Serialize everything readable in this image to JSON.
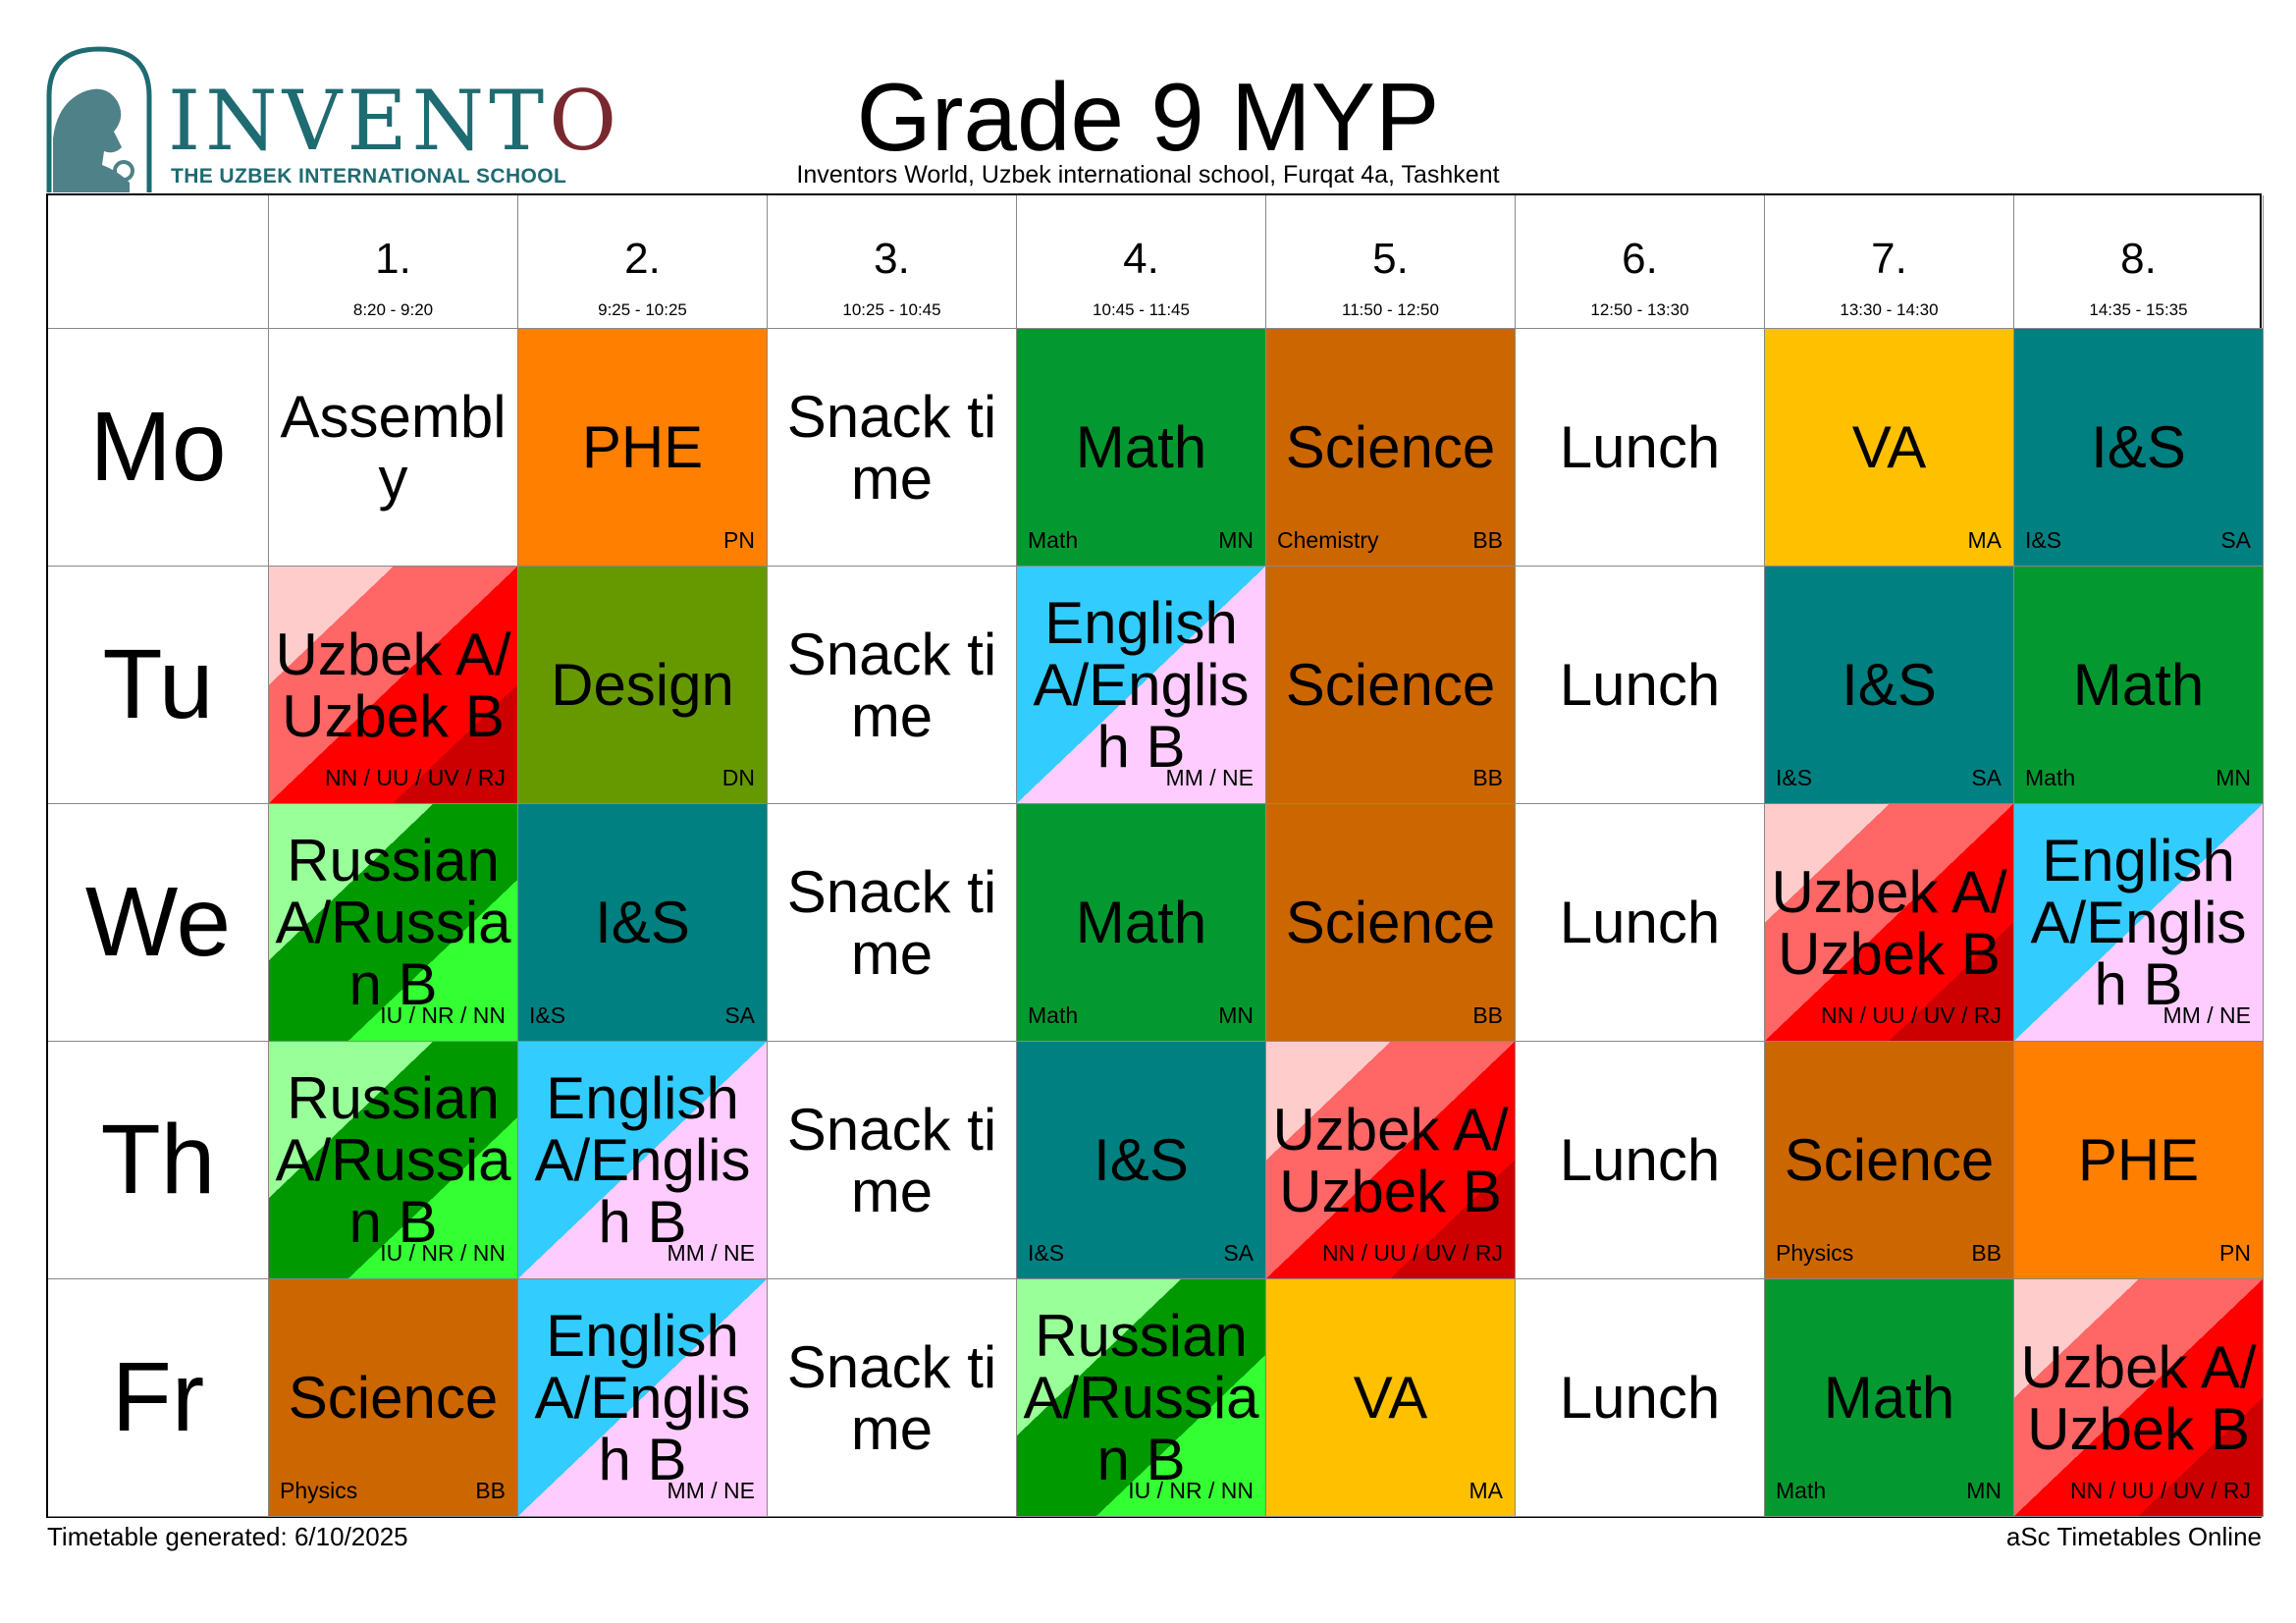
{
  "header": {
    "logo_name": "INVENTO",
    "logo_tagline": "THE UZBEK INTERNATIONAL SCHOOL",
    "title": "Grade 9 MYP",
    "subtitle": "Inventors World, Uzbek international school, Furqat 4a, Tashkent"
  },
  "periods": [
    {
      "num": "1.",
      "time": "8:20 - 9:20"
    },
    {
      "num": "2.",
      "time": "9:25 - 10:25"
    },
    {
      "num": "3.",
      "time": "10:25 - 10:45"
    },
    {
      "num": "4.",
      "time": "10:45 - 11:45"
    },
    {
      "num": "5.",
      "time": "11:50 - 12:50"
    },
    {
      "num": "6.",
      "time": "12:50 - 13:30"
    },
    {
      "num": "7.",
      "time": "13:30 - 14:30"
    },
    {
      "num": "8.",
      "time": "14:35 - 15:35"
    }
  ],
  "colors": {
    "white": "#ffffff",
    "orange": "#ff7f00",
    "green": "#049930",
    "brown": "#cc6600",
    "yellow": "#ffc000",
    "teal": "#008080",
    "olive": "#669900",
    "uzbek": [
      "#ffcccc",
      "#ff6666",
      "#ff0000",
      "#cc0000"
    ],
    "russian": [
      "#99ff99",
      "#009900",
      "#33ff33"
    ],
    "english": [
      "#33ccff",
      "#ffccff"
    ]
  },
  "days": [
    {
      "name": "Mo",
      "lessons": [
        {
          "subject": "Assembly",
          "color": "white",
          "left": "",
          "right": ""
        },
        {
          "subject": "PHE",
          "color": "orange",
          "left": "",
          "right": "PN"
        },
        {
          "subject": "Snack time",
          "color": "white",
          "left": "",
          "right": ""
        },
        {
          "subject": "Math",
          "color": "green",
          "left": "Math",
          "right": "MN"
        },
        {
          "subject": "Science",
          "color": "brown",
          "left": "Chemistry",
          "right": "BB"
        },
        {
          "subject": "Lunch",
          "color": "white",
          "left": "",
          "right": ""
        },
        {
          "subject": "VA",
          "color": "yellow",
          "left": "",
          "right": "MA"
        },
        {
          "subject": "I&S",
          "color": "teal",
          "left": "I&S",
          "right": "SA"
        }
      ]
    },
    {
      "name": "Tu",
      "lessons": [
        {
          "subject": "Uzbek A/Uzbek B",
          "color": "uzbek",
          "left": "",
          "right": "NN / UU / UV / RJ"
        },
        {
          "subject": "Design",
          "color": "olive",
          "left": "",
          "right": "DN"
        },
        {
          "subject": "Snack time",
          "color": "white",
          "left": "",
          "right": ""
        },
        {
          "subject": "English A/English B",
          "color": "english",
          "left": "",
          "right": "MM / NE"
        },
        {
          "subject": "Science",
          "color": "brown",
          "left": "",
          "right": "BB"
        },
        {
          "subject": "Lunch",
          "color": "white",
          "left": "",
          "right": ""
        },
        {
          "subject": "I&S",
          "color": "teal",
          "left": "I&S",
          "right": "SA"
        },
        {
          "subject": "Math",
          "color": "green",
          "left": "Math",
          "right": "MN"
        }
      ]
    },
    {
      "name": "We",
      "lessons": [
        {
          "subject": "Russian A/Russian B",
          "color": "russian",
          "left": "",
          "right": "IU / NR / NN"
        },
        {
          "subject": "I&S",
          "color": "teal",
          "left": "I&S",
          "right": "SA"
        },
        {
          "subject": "Snack time",
          "color": "white",
          "left": "",
          "right": ""
        },
        {
          "subject": "Math",
          "color": "green",
          "left": "Math",
          "right": "MN"
        },
        {
          "subject": "Science",
          "color": "brown",
          "left": "",
          "right": "BB"
        },
        {
          "subject": "Lunch",
          "color": "white",
          "left": "",
          "right": ""
        },
        {
          "subject": "Uzbek A/Uzbek B",
          "color": "uzbek",
          "left": "",
          "right": "NN / UU / UV / RJ"
        },
        {
          "subject": "English A/English B",
          "color": "english",
          "left": "",
          "right": "MM / NE"
        }
      ]
    },
    {
      "name": "Th",
      "lessons": [
        {
          "subject": "Russian A/Russian B",
          "color": "russian",
          "left": "",
          "right": "IU / NR / NN"
        },
        {
          "subject": "English A/English B",
          "color": "english",
          "left": "",
          "right": "MM / NE"
        },
        {
          "subject": "Snack time",
          "color": "white",
          "left": "",
          "right": ""
        },
        {
          "subject": "I&S",
          "color": "teal",
          "left": "I&S",
          "right": "SA"
        },
        {
          "subject": "Uzbek A/Uzbek B",
          "color": "uzbek",
          "left": "",
          "right": "NN / UU / UV / RJ"
        },
        {
          "subject": "Lunch",
          "color": "white",
          "left": "",
          "right": ""
        },
        {
          "subject": "Science",
          "color": "brown",
          "left": "Physics",
          "right": "BB"
        },
        {
          "subject": "PHE",
          "color": "orange",
          "left": "",
          "right": "PN"
        }
      ]
    },
    {
      "name": "Fr",
      "lessons": [
        {
          "subject": "Science",
          "color": "brown",
          "left": "Physics",
          "right": "BB"
        },
        {
          "subject": "English A/English B",
          "color": "english",
          "left": "",
          "right": "MM / NE"
        },
        {
          "subject": "Snack time",
          "color": "white",
          "left": "",
          "right": ""
        },
        {
          "subject": "Russian A/Russian B",
          "color": "russian",
          "left": "",
          "right": "IU / NR / NN"
        },
        {
          "subject": "VA",
          "color": "yellow",
          "left": "",
          "right": "MA"
        },
        {
          "subject": "Lunch",
          "color": "white",
          "left": "",
          "right": ""
        },
        {
          "subject": "Math",
          "color": "green",
          "left": "Math",
          "right": "MN"
        },
        {
          "subject": "Uzbek A/Uzbek B",
          "color": "uzbek",
          "left": "",
          "right": "NN / UU / UV / RJ"
        }
      ]
    }
  ],
  "footer": {
    "generated": "Timetable generated: 6/10/2025",
    "brand": "aSc Timetables Online"
  }
}
